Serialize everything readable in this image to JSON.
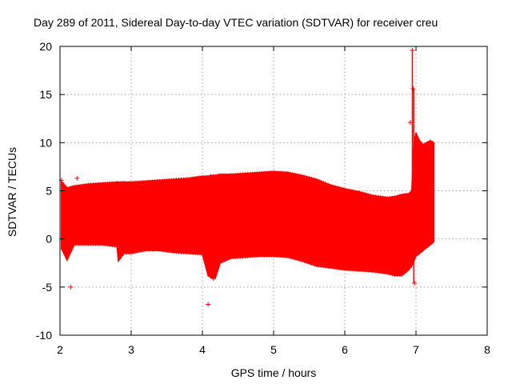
{
  "chart_data": {
    "type": "scatter",
    "title": "Day 289 of 2011, Sidereal Day-to-day VTEC variation (SDTVAR) for receiver creu",
    "xlabel": "GPS time / hours",
    "ylabel": "SDTVAR / TECUs",
    "xlim": [
      2,
      8
    ],
    "ylim": [
      -10,
      20
    ],
    "x_ticks": [
      "2",
      "3",
      "4",
      "5",
      "6",
      "7",
      "8"
    ],
    "y_ticks": [
      "-10",
      "-5",
      "0",
      "5",
      "10",
      "15",
      "20"
    ],
    "x_tick_values": [
      2,
      3,
      4,
      5,
      6,
      7,
      8
    ],
    "y_tick_values": [
      -10,
      -5,
      0,
      5,
      10,
      15,
      20
    ],
    "grid": true,
    "series": [
      {
        "name": "SDTVAR",
        "color": "#ff0000",
        "marker": "plus",
        "band": {
          "x": [
            2.02,
            2.1,
            2.2,
            2.4,
            2.6,
            2.8,
            2.82,
            2.9,
            3.0,
            3.2,
            3.4,
            3.6,
            3.8,
            4.0,
            4.08,
            4.12,
            4.18,
            4.25,
            4.4,
            4.6,
            4.8,
            5.0,
            5.2,
            5.4,
            5.6,
            5.8,
            6.0,
            6.2,
            6.4,
            6.6,
            6.7,
            6.8,
            6.9,
            6.94,
            6.97,
            7.0,
            7.05,
            7.1,
            7.2,
            7.25
          ],
          "upper": [
            6.0,
            5.3,
            5.5,
            5.7,
            5.8,
            5.9,
            5.9,
            5.9,
            5.9,
            6.0,
            6.1,
            6.2,
            6.3,
            6.5,
            6.5,
            6.6,
            6.6,
            6.7,
            6.7,
            6.8,
            6.9,
            7.0,
            6.9,
            6.6,
            6.2,
            5.6,
            5.2,
            4.9,
            4.5,
            4.3,
            4.4,
            4.6,
            4.7,
            5.0,
            10.0,
            11.0,
            10.2,
            9.8,
            10.2,
            10.0
          ],
          "lower": [
            -1.0,
            -2.2,
            -0.6,
            -0.6,
            -0.6,
            -0.8,
            -2.3,
            -1.5,
            -1.5,
            -1.2,
            -1.2,
            -1.4,
            -1.5,
            -1.6,
            -3.8,
            -4.0,
            -4.1,
            -2.5,
            -2.0,
            -1.9,
            -1.8,
            -1.8,
            -1.9,
            -2.3,
            -2.8,
            -3.0,
            -3.2,
            -3.3,
            -3.4,
            -3.6,
            -3.8,
            -3.8,
            -3.2,
            -2.8,
            -2.3,
            -1.8,
            -1.5,
            -1.2,
            -0.6,
            -0.3
          ]
        },
        "outliers": [
          {
            "x": 2.02,
            "y": 6.1
          },
          {
            "x": 2.15,
            "y": -5.0
          },
          {
            "x": 2.24,
            "y": 6.3
          },
          {
            "x": 4.08,
            "y": -6.8
          },
          {
            "x": 4.15,
            "y": -4.1
          },
          {
            "x": 6.92,
            "y": 12.1
          },
          {
            "x": 6.95,
            "y": 19.6
          },
          {
            "x": 6.96,
            "y": 15.6
          },
          {
            "x": 6.98,
            "y": -4.6
          }
        ]
      }
    ]
  }
}
